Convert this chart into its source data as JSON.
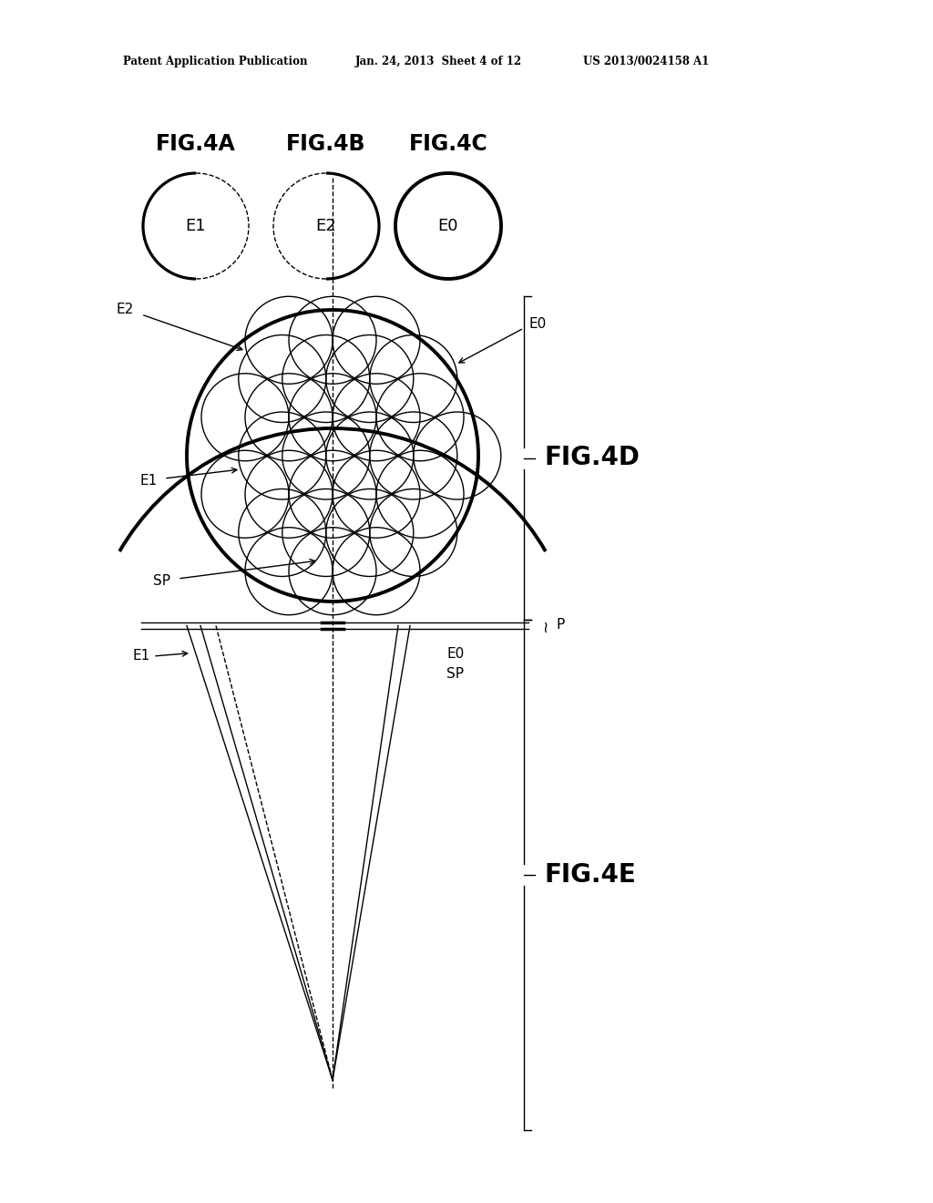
{
  "bg_color": "#ffffff",
  "header_left": "Patent Application Publication",
  "header_mid": "Jan. 24, 2013  Sheet 4 of 12",
  "header_right": "US 2013/0024158 A1",
  "fig4a_label": "FIG.4A",
  "fig4b_label": "FIG.4B",
  "fig4c_label": "FIG.4C",
  "fig4d_label": "FIG.4D",
  "fig4e_label": "FIG.4E",
  "line_color": "#000000",
  "thin_lw": 1.0,
  "thick_lw": 2.8
}
